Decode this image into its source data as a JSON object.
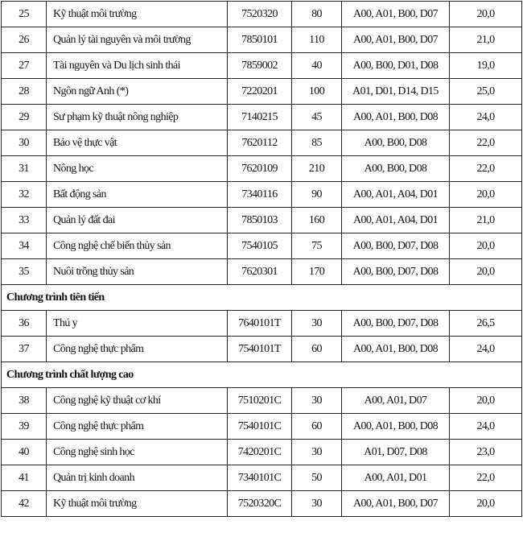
{
  "rows": [
    {
      "type": "row",
      "stt": "25",
      "name": "Kỹ thuật môi trường",
      "code": "7520320",
      "quota": "80",
      "combos": "A00, A01, B00, D07",
      "score": "20,0"
    },
    {
      "type": "row",
      "stt": "26",
      "name": "Quản lý tài nguyên và môi trường",
      "code": "7850101",
      "quota": "110",
      "combos": "A00, A01, B00, D07",
      "score": "21,0"
    },
    {
      "type": "row",
      "stt": "27",
      "name": "Tài nguyên và Du lịch sinh thái",
      "code": "7859002",
      "quota": "40",
      "combos": "A00, B00, D01, D08",
      "score": "19,0"
    },
    {
      "type": "row",
      "stt": "28",
      "name": "Ngôn ngữ Anh (*)",
      "code": "7220201",
      "quota": "100",
      "combos": "A01, D01, D14, D15",
      "score": "25,0"
    },
    {
      "type": "row",
      "stt": "29",
      "name": "Sư phạm kỹ thuật nông nghiệp",
      "code": "7140215",
      "quota": "45",
      "combos": "A00, A01, B00, D08",
      "score": "24,0"
    },
    {
      "type": "row",
      "stt": "30",
      "name": "Bảo vệ thực vật",
      "code": "7620112",
      "quota": "85",
      "combos": "A00, B00, D08",
      "score": "22,0"
    },
    {
      "type": "row",
      "stt": "31",
      "name": "Nông học",
      "code": "7620109",
      "quota": "210",
      "combos": "A00, B00, D08",
      "score": "22,0"
    },
    {
      "type": "row",
      "stt": "32",
      "name": "Bất động sản",
      "code": "7340116",
      "quota": "90",
      "combos": "A00, A01, A04, D01",
      "score": "20,0"
    },
    {
      "type": "row",
      "stt": "33",
      "name": "Quản lý đất đai",
      "code": "7850103",
      "quota": "160",
      "combos": "A00, A01, A04, D01",
      "score": "21,0"
    },
    {
      "type": "row",
      "stt": "34",
      "name": "Công nghệ chế biến thủy sản",
      "code": "7540105",
      "quota": "75",
      "combos": "A00, B00, D07, D08",
      "score": "20,0"
    },
    {
      "type": "row",
      "stt": "35",
      "name": "Nuôi trồng thủy sản",
      "code": "7620301",
      "quota": "170",
      "combos": "A00, B00, D07, D08",
      "score": "20,0"
    },
    {
      "type": "section",
      "title": "Chương trình tiên tiến"
    },
    {
      "type": "row",
      "stt": "36",
      "name": "Thú y",
      "code": "7640101T",
      "quota": "30",
      "combos": "A00, B00, D07, D08",
      "score": "26,5"
    },
    {
      "type": "row",
      "stt": "37",
      "name": "Công nghệ thực phẩm",
      "code": "7540101T",
      "quota": "60",
      "combos": "A00, A01, B00, D08",
      "score": "24,0"
    },
    {
      "type": "section",
      "title": "Chương trình chất lượng cao"
    },
    {
      "type": "row",
      "stt": "38",
      "name": "Công nghệ kỹ thuật cơ khí",
      "code": "7510201C",
      "quota": "30",
      "combos": "A00, A01, D07",
      "score": "20,0"
    },
    {
      "type": "row",
      "stt": "39",
      "name": "Công nghệ thực phẩm",
      "code": "7540101C",
      "quota": "60",
      "combos": "A00, A01, B00, D08",
      "score": "24,0"
    },
    {
      "type": "row",
      "stt": "40",
      "name": "Công nghệ sinh học",
      "code": "7420201C",
      "quota": "30",
      "combos": "A01, D07, D08",
      "score": "23,0"
    },
    {
      "type": "row",
      "stt": "41",
      "name": "Quản trị kinh doanh",
      "code": "7340101C",
      "quota": "50",
      "combos": "A00, A01, D01",
      "score": "22,0"
    },
    {
      "type": "row",
      "stt": "42",
      "name": "Kỹ thuật môi trường",
      "code": "7520320C",
      "quota": "30",
      "combos": "A00, A01, B00, D07",
      "score": "20,0"
    }
  ]
}
